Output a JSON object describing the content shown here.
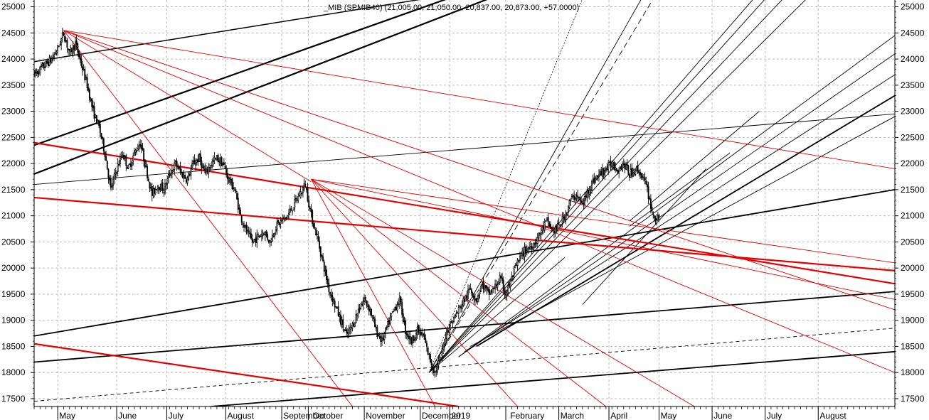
{
  "chart_data": {
    "type": "candlestick",
    "title": "_MIB (SPMIB40) (21,005.00, 21,050.00, 20,837.00, 20,873.00, +57.0000)",
    "ylim": [
      17350,
      25130
    ],
    "y_ticks": [
      17500,
      18000,
      18500,
      19000,
      19500,
      20000,
      20500,
      21000,
      21500,
      22000,
      22500,
      23000,
      23500,
      24000,
      24500,
      25000
    ],
    "y_tick_labels": [
      "17500",
      "18000",
      "18500",
      "19000",
      "19500",
      "20000",
      "20500",
      "21000",
      "21500",
      "22000",
      "22500",
      "23000",
      "23500",
      "24000",
      "24500",
      "25000"
    ],
    "x_labels": [
      {
        "label": "May",
        "week": 4.5
      },
      {
        "label": "June",
        "week": 14.5
      },
      {
        "label": "July",
        "week": 23
      },
      {
        "label": "August",
        "week": 33
      },
      {
        "label": "September",
        "week": 42.5
      },
      {
        "label": "October",
        "week": 47.5
      },
      {
        "label": "November",
        "week": 56.5
      },
      {
        "label": "December",
        "week": 66
      },
      {
        "label": "2019",
        "week": 71
      },
      {
        "label": "February",
        "week": 81
      },
      {
        "label": "March",
        "week": 89.5
      },
      {
        "label": "April",
        "week": 98
      },
      {
        "label": "May",
        "week": 106.5
      },
      {
        "label": "June",
        "week": 115.5
      },
      {
        "label": "July",
        "week": 124.5
      },
      {
        "label": "August",
        "week": 133.5
      }
    ],
    "gridline_weeks": [
      4,
      14,
      22.5,
      32.5,
      42,
      46.5,
      56,
      65.5,
      70.5,
      80,
      89,
      97.5,
      106,
      115,
      124,
      133
    ],
    "x_range_weeks": [
      0,
      146
    ],
    "ohlc_anchors": [
      [
        0,
        23700
      ],
      [
        1,
        23800
      ],
      [
        3,
        24000
      ],
      [
        4,
        24200
      ],
      [
        5,
        24500
      ],
      [
        6,
        24100
      ],
      [
        7,
        24300
      ],
      [
        8,
        23900
      ],
      [
        9,
        23500
      ],
      [
        10,
        23000
      ],
      [
        11,
        22700
      ],
      [
        12,
        22200
      ],
      [
        13,
        21500
      ],
      [
        14,
        21900
      ],
      [
        15,
        22200
      ],
      [
        16,
        21900
      ],
      [
        17,
        22200
      ],
      [
        18,
        22400
      ],
      [
        19,
        21900
      ],
      [
        20,
        21400
      ],
      [
        21,
        21600
      ],
      [
        22,
        21500
      ],
      [
        23,
        21800
      ],
      [
        24,
        22000
      ],
      [
        25,
        21800
      ],
      [
        26,
        21700
      ],
      [
        27,
        22000
      ],
      [
        28,
        22100
      ],
      [
        29,
        21800
      ],
      [
        30,
        22000
      ],
      [
        31,
        22100
      ],
      [
        32,
        22000
      ],
      [
        33,
        21700
      ],
      [
        34,
        21500
      ],
      [
        35,
        21000
      ],
      [
        36,
        20700
      ],
      [
        37,
        20500
      ],
      [
        38,
        20600
      ],
      [
        39,
        20700
      ],
      [
        40,
        20500
      ],
      [
        41,
        20800
      ],
      [
        42,
        20900
      ],
      [
        43,
        21000
      ],
      [
        44,
        21200
      ],
      [
        45,
        21400
      ],
      [
        46,
        21600
      ],
      [
        47,
        21000
      ],
      [
        48,
        20600
      ],
      [
        49,
        20100
      ],
      [
        50,
        19600
      ],
      [
        51,
        19300
      ],
      [
        52,
        19000
      ],
      [
        53,
        18700
      ],
      [
        54,
        18900
      ],
      [
        55,
        19200
      ],
      [
        56,
        19400
      ],
      [
        57,
        19200
      ],
      [
        58,
        18800
      ],
      [
        59,
        18600
      ],
      [
        60,
        18900
      ],
      [
        61,
        19200
      ],
      [
        62,
        19400
      ],
      [
        63,
        18800
      ],
      [
        64,
        18600
      ],
      [
        65,
        18800
      ],
      [
        66,
        18700
      ],
      [
        67,
        18300
      ],
      [
        68,
        18000
      ],
      [
        69,
        18300
      ],
      [
        70,
        18800
      ],
      [
        71,
        19000
      ],
      [
        72,
        19200
      ],
      [
        73,
        19400
      ],
      [
        74,
        19600
      ],
      [
        75,
        19400
      ],
      [
        76,
        19700
      ],
      [
        77,
        19500
      ],
      [
        78,
        19600
      ],
      [
        79,
        19800
      ],
      [
        80,
        19500
      ],
      [
        81,
        19800
      ],
      [
        82,
        20100
      ],
      [
        83,
        20300
      ],
      [
        84,
        20400
      ],
      [
        85,
        20500
      ],
      [
        86,
        20700
      ],
      [
        87,
        20900
      ],
      [
        88,
        20700
      ],
      [
        89,
        20800
      ],
      [
        90,
        21000
      ],
      [
        91,
        21300
      ],
      [
        92,
        21400
      ],
      [
        93,
        21200
      ],
      [
        94,
        21500
      ],
      [
        95,
        21700
      ],
      [
        96,
        21800
      ],
      [
        97,
        21900
      ],
      [
        98,
        22000
      ],
      [
        99,
        21900
      ],
      [
        100,
        22000
      ],
      [
        101,
        21800
      ],
      [
        102,
        21900
      ],
      [
        103,
        21800
      ],
      [
        104,
        21500
      ],
      [
        105,
        21000
      ],
      [
        106,
        20900
      ]
    ],
    "trend_lines": [
      {
        "color": "#000",
        "width": 1.5,
        "dash": "",
        "p1": [
          0,
          23950
        ],
        "p2": [
          66,
          25150
        ]
      },
      {
        "color": "#000",
        "width": 2.2,
        "dash": "",
        "p1": [
          0,
          22350
        ],
        "p2": [
          70,
          25150
        ]
      },
      {
        "color": "#000",
        "width": 2.2,
        "dash": "",
        "p1": [
          0,
          21800
        ],
        "p2": [
          77,
          25150
        ]
      },
      {
        "color": "#000",
        "width": 0.9,
        "dash": "",
        "p1": [
          0,
          21600
        ],
        "p2": [
          146,
          22950
        ]
      },
      {
        "color": "#000",
        "width": 1.8,
        "dash": "",
        "p1": [
          0,
          18700
        ],
        "p2": [
          146,
          21500
        ]
      },
      {
        "color": "#000",
        "width": 1.8,
        "dash": "",
        "p1": [
          0,
          18200
        ],
        "p2": [
          146,
          19550
        ]
      },
      {
        "color": "#000",
        "width": 0.9,
        "dash": "5,4",
        "p1": [
          0,
          17450
        ],
        "p2": [
          146,
          18850
        ]
      },
      {
        "color": "#000",
        "width": 1.8,
        "dash": "",
        "p1": [
          30,
          17350
        ],
        "p2": [
          146,
          18400
        ]
      },
      {
        "color": "#000",
        "width": 1.8,
        "dash": "",
        "p1": [
          75,
          18500
        ],
        "p2": [
          146,
          23300
        ]
      },
      {
        "color": "#000",
        "width": 0.9,
        "dash": "",
        "p1": [
          74,
          18500
        ],
        "p2": [
          146,
          22900
        ]
      },
      {
        "color": "#000",
        "width": 0.9,
        "dash": "",
        "p1": [
          73,
          18400
        ],
        "p2": [
          146,
          23700
        ]
      },
      {
        "color": "#000",
        "width": 0.9,
        "dash": "",
        "p1": [
          72,
          18300
        ],
        "p2": [
          146,
          24100
        ]
      },
      {
        "color": "#000",
        "width": 0.9,
        "dash": "",
        "p1": [
          72,
          18300
        ],
        "p2": [
          146,
          24450
        ]
      },
      {
        "color": "#000",
        "width": 0.9,
        "dash": "",
        "p1": [
          67,
          18000
        ],
        "p2": [
          122,
          25150
        ]
      },
      {
        "color": "#000",
        "width": 0.9,
        "dash": "",
        "p1": [
          67,
          18000
        ],
        "p2": [
          124,
          25150
        ]
      },
      {
        "color": "#000",
        "width": 0.9,
        "dash": "",
        "p1": [
          67,
          18000
        ],
        "p2": [
          127,
          25150
        ]
      },
      {
        "color": "#000",
        "width": 0.9,
        "dash": "",
        "p1": [
          67,
          18000
        ],
        "p2": [
          131,
          25150
        ]
      },
      {
        "color": "#000",
        "width": 0.9,
        "dash": "",
        "p1": [
          67,
          18000
        ],
        "p2": [
          103,
          25150
        ]
      },
      {
        "color": "#000",
        "width": 0.9,
        "dash": "8,5",
        "p1": [
          67,
          18000
        ],
        "p2": [
          105,
          25150
        ]
      },
      {
        "color": "#000",
        "width": 0.8,
        "dash": "2,2",
        "p1": [
          67,
          18000
        ],
        "p2": [
          93,
          25150
        ]
      },
      {
        "color": "#000",
        "width": 0.9,
        "dash": "",
        "p1": [
          67,
          18000
        ],
        "p2": [
          90,
          20200
        ]
      },
      {
        "color": "#000",
        "width": 0.9,
        "dash": "",
        "p1": [
          93,
          19300
        ],
        "p2": [
          114,
          21900
        ]
      },
      {
        "color": "#000",
        "width": 0.9,
        "dash": "",
        "p1": [
          101,
          20900
        ],
        "p2": [
          123,
          23000
        ]
      },
      {
        "color": "#000",
        "width": 0.9,
        "dash": "",
        "p1": [
          101,
          20800
        ],
        "p2": [
          118,
          22200
        ]
      },
      {
        "color": "#e60000",
        "width": 2.2,
        "dash": "",
        "p1": [
          0,
          22400
        ],
        "p2": [
          146,
          19700
        ]
      },
      {
        "color": "#e60000",
        "width": 2.2,
        "dash": "",
        "p1": [
          0,
          21350
        ],
        "p2": [
          146,
          19950
        ]
      },
      {
        "color": "#e60000",
        "width": 2.2,
        "dash": "",
        "p1": [
          0,
          18550
        ],
        "p2": [
          72,
          17350
        ]
      },
      {
        "color": "#e60000",
        "width": 0.9,
        "dash": "",
        "p1": [
          5,
          24550
        ],
        "p2": [
          146,
          21900
        ]
      },
      {
        "color": "#e60000",
        "width": 0.9,
        "dash": "",
        "p1": [
          5,
          24550
        ],
        "p2": [
          146,
          18000
        ]
      },
      {
        "color": "#e60000",
        "width": 0.9,
        "dash": "",
        "p1": [
          5,
          24550
        ],
        "p2": [
          146,
          19200
        ]
      },
      {
        "color": "#e60000",
        "width": 0.9,
        "dash": "",
        "p1": [
          5,
          24550
        ],
        "p2": [
          54,
          17350
        ]
      },
      {
        "color": "#e60000",
        "width": 0.9,
        "dash": "",
        "p1": [
          5,
          24550
        ],
        "p2": [
          47,
          21650
        ]
      },
      {
        "color": "#e60000",
        "width": 0.9,
        "dash": "",
        "p1": [
          47,
          21700
        ],
        "p2": [
          68,
          17350
        ]
      },
      {
        "color": "#e60000",
        "width": 0.9,
        "dash": "",
        "p1": [
          47,
          21700
        ],
        "p2": [
          82,
          17350
        ]
      },
      {
        "color": "#e60000",
        "width": 0.9,
        "dash": "",
        "p1": [
          47,
          21700
        ],
        "p2": [
          97,
          17350
        ]
      },
      {
        "color": "#e60000",
        "width": 0.9,
        "dash": "",
        "p1": [
          47,
          21700
        ],
        "p2": [
          112,
          17350
        ]
      },
      {
        "color": "#e60000",
        "width": 0.9,
        "dash": "",
        "p1": [
          47,
          21700
        ],
        "p2": [
          146,
          20100
        ]
      },
      {
        "color": "#e60000",
        "width": 0.9,
        "dash": "",
        "p1": [
          47,
          21700
        ],
        "p2": [
          146,
          19400
        ]
      }
    ]
  }
}
